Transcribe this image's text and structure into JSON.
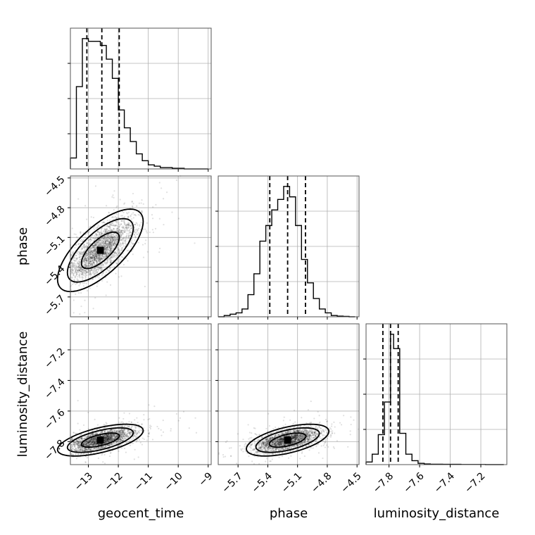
{
  "chart_data": {
    "type": "corner",
    "parameters": [
      "geocent_time",
      "phase",
      "luminosity_distance"
    ],
    "axis_labels": {
      "geocent_time": "geocent_time",
      "phase": "phase",
      "luminosity_distance": "luminosity_distance"
    },
    "ranges": {
      "geocent_time": [
        -13.6,
        -8.9
      ],
      "phase": [
        -5.9,
        -4.48
      ],
      "luminosity_distance": [
        -7.95,
        -7.03
      ]
    },
    "ticks": {
      "geocent_time": [
        -13,
        -12,
        -11,
        -10,
        -9
      ],
      "phase": [
        -5.7,
        -5.4,
        -5.1,
        -4.8,
        -4.5
      ],
      "luminosity_distance": [
        -7.8,
        -7.6,
        -7.4,
        -7.2
      ]
    },
    "tick_labels": {
      "geocent_time": [
        "−13",
        "−12",
        "−11",
        "−10",
        "−9"
      ],
      "phase": [
        "−5.7",
        "−5.4",
        "−5.1",
        "−4.8",
        "−4.5"
      ],
      "luminosity_distance": [
        "−7.8",
        "−7.6",
        "−7.4",
        "−7.2"
      ]
    },
    "quantiles": {
      "geocent_time": [
        -13.05,
        -12.55,
        -11.97
      ],
      "phase": [
        -5.38,
        -5.2,
        -5.02
      ],
      "luminosity_distance": [
        -7.84,
        -7.79,
        -7.74
      ]
    },
    "histograms": {
      "geocent_time": {
        "edges": [
          -13.6,
          -13.4,
          -13.2,
          -13.0,
          -12.8,
          -12.6,
          -12.4,
          -12.2,
          -12.0,
          -11.8,
          -11.6,
          -11.4,
          -11.2,
          -11.0,
          -10.8,
          -10.6,
          -10.4,
          -10.2,
          -10.0,
          -9.8,
          -9.6,
          -9.4,
          -9.2,
          -9.0
        ],
        "counts": [
          8,
          60,
          95,
          93,
          93,
          90,
          80,
          66,
          43,
          30,
          20,
          11,
          6,
          3,
          2,
          1,
          1,
          0.5,
          0.5,
          0,
          0,
          0,
          0
        ]
      },
      "phase": {
        "edges": [
          -5.9,
          -5.84,
          -5.78,
          -5.72,
          -5.66,
          -5.6,
          -5.54,
          -5.48,
          -5.42,
          -5.36,
          -5.3,
          -5.24,
          -5.18,
          -5.12,
          -5.06,
          -5.0,
          -4.94,
          -4.88,
          -4.82,
          -4.76,
          -4.7,
          -4.64,
          -4.58,
          -4.52
        ],
        "counts": [
          0,
          1,
          2,
          3,
          6,
          17,
          33,
          58,
          70,
          82,
          90,
          100,
          92,
          70,
          44,
          26,
          14,
          6,
          3,
          1,
          0.5,
          0.3,
          0
        ]
      },
      "luminosity_distance": {
        "edges": [
          -7.95,
          -7.91,
          -7.87,
          -7.83,
          -7.79,
          -7.77,
          -7.73,
          -7.69,
          -7.65,
          -7.61,
          -7.57,
          -7.53,
          -7.49,
          -7.45,
          -7.41,
          -7.37,
          -7.33,
          -7.29,
          -7.25,
          -7.21,
          -7.17,
          -7.13,
          -7.09,
          -7.05
        ],
        "counts": [
          2,
          8,
          23,
          48,
          100,
          89,
          24,
          8,
          3,
          1,
          0.5,
          0.3,
          0.3,
          0.2,
          0.2,
          0.2,
          0.1,
          0.1,
          0.1,
          0.1,
          0,
          0,
          0
        ]
      }
    },
    "correlations": {
      "phase_vs_geocent_time": {
        "center": [
          -12.6,
          -5.23
        ],
        "sd": [
          0.55,
          0.16
        ],
        "rho": 0.7
      },
      "luminosity_distance_vs_geocent_time": {
        "center": [
          -12.6,
          -7.79
        ],
        "sd": [
          0.55,
          0.04
        ],
        "rho": 0.6
      },
      "luminosity_distance_vs_phase": {
        "center": [
          -5.2,
          -7.79
        ],
        "sd": [
          0.16,
          0.04
        ],
        "rho": 0.55
      }
    },
    "grid": true
  }
}
